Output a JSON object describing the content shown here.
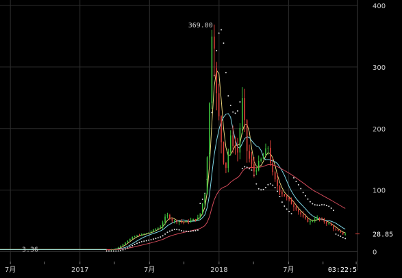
{
  "chart_data": {
    "type": "candlestick",
    "ylim": [
      -15,
      400
    ],
    "y_ticks": [
      {
        "value": 0,
        "label": "0"
      },
      {
        "value": 100,
        "label": "100"
      },
      {
        "value": 200,
        "label": "200"
      },
      {
        "value": 300,
        "label": "300"
      },
      {
        "value": 400,
        "label": "400"
      }
    ],
    "x_ticks": [
      "7月",
      "2017",
      "7月",
      "2018",
      "7月"
    ],
    "x_ticks_t": [
      0.3,
      5.65,
      11.0,
      16.35,
      21.7
    ],
    "xlim": [
      -0.5,
      27.0
    ],
    "current_time": "03:22:5",
    "annotations": {
      "max_label": "369.00",
      "max_value": 369.0,
      "min_label": "3.36",
      "min_value": 3.36,
      "last_price_label": "28.85",
      "last_price": 28.85
    },
    "colors": {
      "up": "#3ec43e",
      "down": "#e0413a",
      "ma_short": "#e8d27a",
      "ma_mid": "#7fd7e6",
      "ma_long": "#d24a5a",
      "dots": "#e0e0e0",
      "grid": "#2c2c2c"
    },
    "key_points": [
      {
        "t": 0,
        "price": 3.4
      },
      {
        "t": 8.0,
        "price": 3.4
      },
      {
        "t": 8.5,
        "price": 4
      },
      {
        "t": 9.0,
        "price": 10
      },
      {
        "t": 9.5,
        "price": 18
      },
      {
        "t": 10.0,
        "price": 25
      },
      {
        "t": 11.0,
        "price": 30
      },
      {
        "t": 12.0,
        "price": 40
      },
      {
        "t": 12.5,
        "price": 60
      },
      {
        "t": 13.0,
        "price": 50
      },
      {
        "t": 14.0,
        "price": 48
      },
      {
        "t": 15.0,
        "price": 55
      },
      {
        "t": 15.5,
        "price": 100
      },
      {
        "t": 15.8,
        "price": 240
      },
      {
        "t": 16.0,
        "price": 369
      },
      {
        "t": 16.3,
        "price": 260
      },
      {
        "t": 16.7,
        "price": 180
      },
      {
        "t": 17.0,
        "price": 130
      },
      {
        "t": 17.4,
        "price": 185
      },
      {
        "t": 18.0,
        "price": 160
      },
      {
        "t": 18.3,
        "price": 250
      },
      {
        "t": 18.7,
        "price": 160
      },
      {
        "t": 19.2,
        "price": 130
      },
      {
        "t": 19.8,
        "price": 150
      },
      {
        "t": 20.3,
        "price": 170
      },
      {
        "t": 20.7,
        "price": 120
      },
      {
        "t": 21.2,
        "price": 100
      },
      {
        "t": 21.8,
        "price": 85
      },
      {
        "t": 22.5,
        "price": 70
      },
      {
        "t": 23.0,
        "price": 55
      },
      {
        "t": 23.5,
        "price": 48
      },
      {
        "t": 24.0,
        "price": 55
      },
      {
        "t": 24.5,
        "price": 50
      },
      {
        "t": 25.0,
        "price": 45
      },
      {
        "t": 25.5,
        "price": 35
      },
      {
        "t": 26.0,
        "price": 28.85
      }
    ]
  }
}
